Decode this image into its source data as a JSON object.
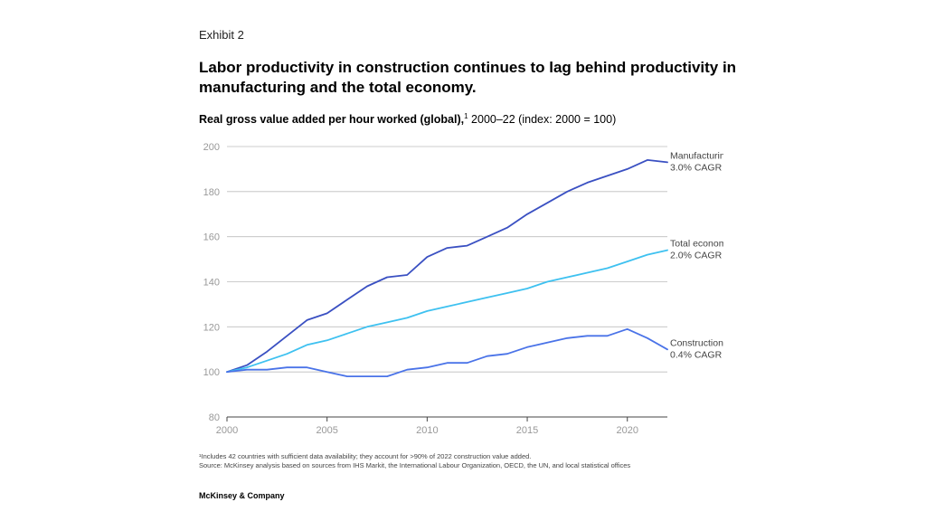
{
  "exhibit": "Exhibit 2",
  "title": "Labor productivity in construction continues to lag behind productivity in manufacturing and the total economy.",
  "subtitle_bold": "Real gross value added per hour worked (global),",
  "subtitle_sup": "1",
  "subtitle_rest": " 2000–22 (index: 2000 = 100)",
  "footnote_1": "¹Includes 42 countries with sufficient data availability; they account for >90% of 2022 construction value added.",
  "footnote_2": "Source: McKinsey analysis based on sources from IHS Markit, the International Labour Organization, OECD, the UN, and local statistical offices",
  "brand": "McKinsey & Company",
  "colors": {
    "manufacturing": "#3a50c2",
    "total_economy": "#3ec1f0",
    "construction": "#4a73e8",
    "grid": "#bdbdbd",
    "axis": "#444444"
  },
  "chart_data": {
    "type": "line",
    "x": [
      2000,
      2001,
      2002,
      2003,
      2004,
      2005,
      2006,
      2007,
      2008,
      2009,
      2010,
      2011,
      2012,
      2013,
      2014,
      2015,
      2016,
      2017,
      2018,
      2019,
      2020,
      2021,
      2022
    ],
    "xlim": [
      2000,
      2022
    ],
    "ylim": [
      80,
      200
    ],
    "x_ticks": [
      2000,
      2005,
      2010,
      2015,
      2020
    ],
    "y_ticks": [
      80,
      100,
      120,
      140,
      160,
      180,
      200
    ],
    "grid": "horizontal",
    "series": [
      {
        "key": "manufacturing",
        "name": "Manufacturing",
        "cagr": "3.0% CAGR",
        "values": [
          100,
          103,
          109,
          116,
          123,
          126,
          132,
          138,
          142,
          143,
          151,
          155,
          156,
          160,
          164,
          170,
          175,
          180,
          184,
          187,
          190,
          194,
          193
        ]
      },
      {
        "key": "total_economy",
        "name": "Total economy",
        "cagr": "2.0% CAGR",
        "values": [
          100,
          102,
          105,
          108,
          112,
          114,
          117,
          120,
          122,
          124,
          127,
          129,
          131,
          133,
          135,
          137,
          140,
          142,
          144,
          146,
          149,
          152,
          154
        ]
      },
      {
        "key": "construction",
        "name": "Construction",
        "cagr": "0.4% CAGR",
        "values": [
          100,
          101,
          101,
          102,
          102,
          100,
          98,
          98,
          98,
          101,
          102,
          104,
          104,
          107,
          108,
          111,
          113,
          115,
          116,
          116,
          119,
          115,
          110
        ]
      }
    ]
  }
}
